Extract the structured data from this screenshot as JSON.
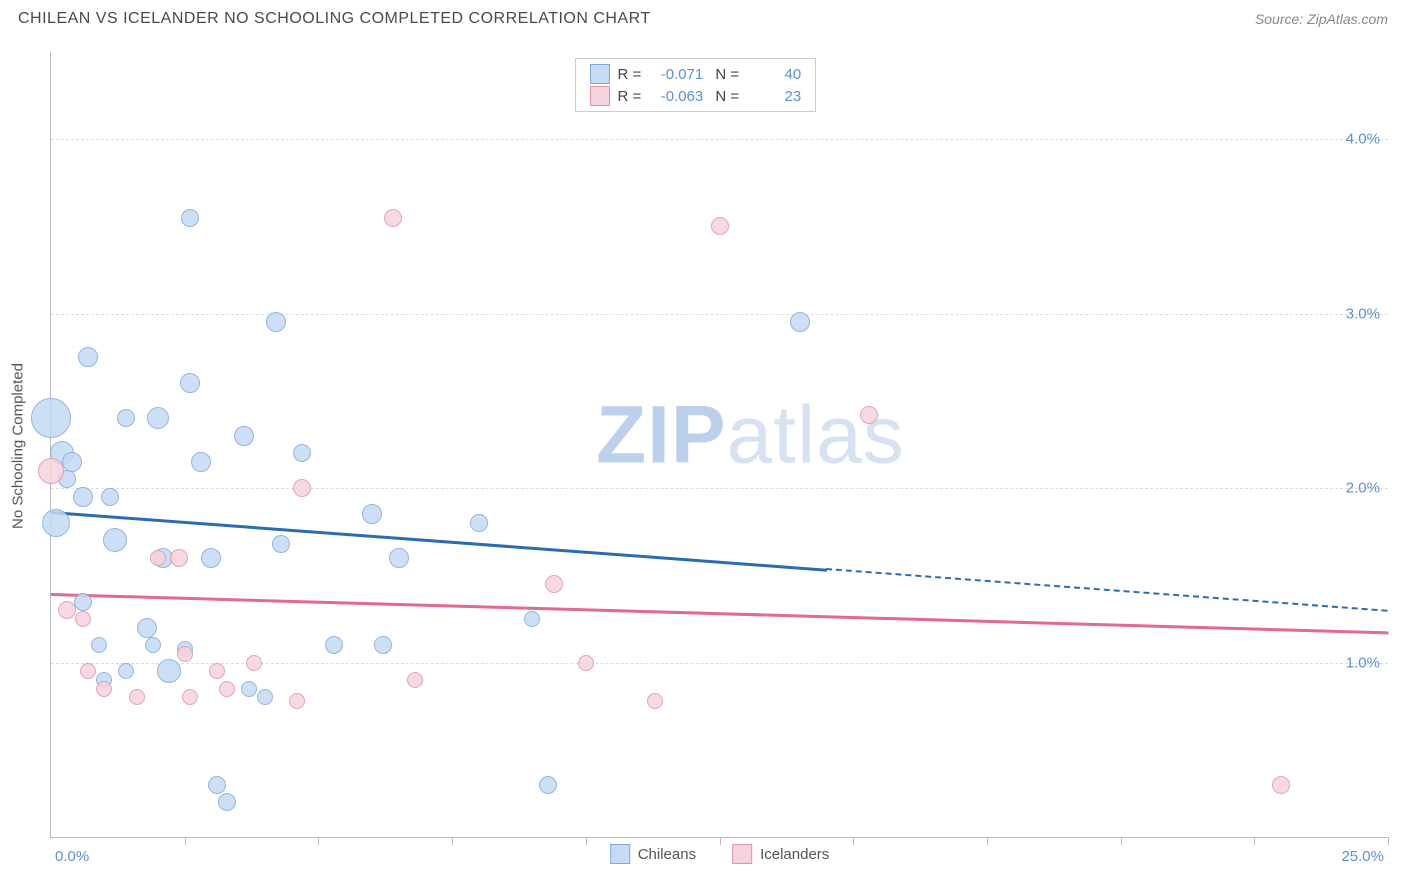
{
  "header": {
    "title": "CHILEAN VS ICELANDER NO SCHOOLING COMPLETED CORRELATION CHART",
    "source_label": "Source:",
    "source_value": "ZipAtlas.com"
  },
  "watermark": {
    "part1": "ZIP",
    "part2": "atlas",
    "color1": "#bcd0ec",
    "color2": "#d6e2f2"
  },
  "chart": {
    "type": "scatter",
    "background_color": "#ffffff",
    "grid_color": "#dddddd",
    "axis_color": "#bbbbbb",
    "label_color": "#5b8fd6",
    "yaxis_title": "No Schooling Completed",
    "xlim": [
      0,
      25
    ],
    "ylim": [
      0,
      4.5
    ],
    "x_ticks": [
      2.5,
      5.0,
      7.5,
      10.0,
      12.5,
      15.0,
      17.5,
      20.0,
      22.5,
      25.0
    ],
    "y_gridlines": [
      1.0,
      2.0,
      3.0,
      4.0
    ],
    "y_tick_labels": [
      "1.0%",
      "2.0%",
      "3.0%",
      "4.0%"
    ],
    "x_min_label": "0.0%",
    "x_max_label": "25.0%",
    "series": [
      {
        "id": "chileans",
        "label": "Chileans",
        "fill": "#c5daf3",
        "stroke": "#7fa9de",
        "r_value": "-0.071",
        "n_value": "40",
        "trend": {
          "color": "#2b6cb0",
          "y_left": 1.87,
          "y_right": 1.3,
          "solid_until_x": 14.5
        },
        "points": [
          {
            "x": 0.0,
            "y": 2.4,
            "r": 20
          },
          {
            "x": 0.2,
            "y": 2.2,
            "r": 12
          },
          {
            "x": 0.4,
            "y": 2.15,
            "r": 10
          },
          {
            "x": 0.1,
            "y": 1.8,
            "r": 14
          },
          {
            "x": 0.6,
            "y": 1.95,
            "r": 10
          },
          {
            "x": 1.1,
            "y": 1.95,
            "r": 9
          },
          {
            "x": 0.7,
            "y": 2.75,
            "r": 10
          },
          {
            "x": 1.4,
            "y": 2.4,
            "r": 9
          },
          {
            "x": 2.0,
            "y": 2.4,
            "r": 11
          },
          {
            "x": 2.6,
            "y": 2.6,
            "r": 10
          },
          {
            "x": 2.6,
            "y": 3.55,
            "r": 9
          },
          {
            "x": 2.8,
            "y": 2.15,
            "r": 10
          },
          {
            "x": 3.6,
            "y": 2.3,
            "r": 10
          },
          {
            "x": 4.3,
            "y": 1.68,
            "r": 9
          },
          {
            "x": 3.0,
            "y": 1.6,
            "r": 10
          },
          {
            "x": 1.2,
            "y": 1.7,
            "r": 12
          },
          {
            "x": 2.1,
            "y": 1.6,
            "r": 10
          },
          {
            "x": 4.2,
            "y": 2.95,
            "r": 10
          },
          {
            "x": 4.7,
            "y": 2.2,
            "r": 9
          },
          {
            "x": 6.0,
            "y": 1.85,
            "r": 10
          },
          {
            "x": 6.5,
            "y": 1.6,
            "r": 10
          },
          {
            "x": 8.0,
            "y": 1.8,
            "r": 9
          },
          {
            "x": 5.3,
            "y": 1.1,
            "r": 9
          },
          {
            "x": 6.2,
            "y": 1.1,
            "r": 9
          },
          {
            "x": 1.8,
            "y": 1.2,
            "r": 10
          },
          {
            "x": 1.9,
            "y": 1.1,
            "r": 8
          },
          {
            "x": 3.7,
            "y": 0.85,
            "r": 8
          },
          {
            "x": 3.1,
            "y": 0.3,
            "r": 9
          },
          {
            "x": 3.3,
            "y": 0.2,
            "r": 9
          },
          {
            "x": 9.3,
            "y": 0.3,
            "r": 9
          },
          {
            "x": 9.0,
            "y": 1.25,
            "r": 8
          },
          {
            "x": 14.0,
            "y": 2.95,
            "r": 10
          },
          {
            "x": 2.2,
            "y": 0.95,
            "r": 12
          },
          {
            "x": 1.4,
            "y": 0.95,
            "r": 8
          },
          {
            "x": 0.6,
            "y": 1.35,
            "r": 9
          },
          {
            "x": 0.9,
            "y": 1.1,
            "r": 8
          },
          {
            "x": 2.5,
            "y": 1.08,
            "r": 8
          },
          {
            "x": 1.0,
            "y": 0.9,
            "r": 8
          },
          {
            "x": 4.0,
            "y": 0.8,
            "r": 8
          },
          {
            "x": 0.3,
            "y": 2.05,
            "r": 9
          }
        ]
      },
      {
        "id": "icelanders",
        "label": "Icelanders",
        "fill": "#f6d3dc",
        "stroke": "#e294ac",
        "r_value": "-0.063",
        "n_value": "23",
        "trend": {
          "color": "#e26a8c",
          "y_left": 1.4,
          "y_right": 1.18,
          "solid_until_x": 25
        },
        "points": [
          {
            "x": 0.0,
            "y": 2.1,
            "r": 13
          },
          {
            "x": 0.3,
            "y": 1.3,
            "r": 9
          },
          {
            "x": 0.6,
            "y": 1.25,
            "r": 8
          },
          {
            "x": 0.7,
            "y": 0.95,
            "r": 8
          },
          {
            "x": 1.0,
            "y": 0.85,
            "r": 8
          },
          {
            "x": 1.6,
            "y": 0.8,
            "r": 8
          },
          {
            "x": 2.4,
            "y": 1.6,
            "r": 9
          },
          {
            "x": 2.5,
            "y": 1.05,
            "r": 8
          },
          {
            "x": 2.6,
            "y": 0.8,
            "r": 8
          },
          {
            "x": 3.1,
            "y": 0.95,
            "r": 8
          },
          {
            "x": 3.3,
            "y": 0.85,
            "r": 8
          },
          {
            "x": 3.8,
            "y": 1.0,
            "r": 8
          },
          {
            "x": 4.6,
            "y": 0.78,
            "r": 8
          },
          {
            "x": 4.7,
            "y": 2.0,
            "r": 9
          },
          {
            "x": 6.4,
            "y": 3.55,
            "r": 9
          },
          {
            "x": 6.8,
            "y": 0.9,
            "r": 8
          },
          {
            "x": 9.4,
            "y": 1.45,
            "r": 9
          },
          {
            "x": 10.0,
            "y": 1.0,
            "r": 8
          },
          {
            "x": 11.3,
            "y": 0.78,
            "r": 8
          },
          {
            "x": 12.5,
            "y": 3.5,
            "r": 9
          },
          {
            "x": 15.3,
            "y": 2.42,
            "r": 9
          },
          {
            "x": 23.0,
            "y": 0.3,
            "r": 9
          },
          {
            "x": 2.0,
            "y": 1.6,
            "r": 8
          }
        ]
      }
    ]
  }
}
